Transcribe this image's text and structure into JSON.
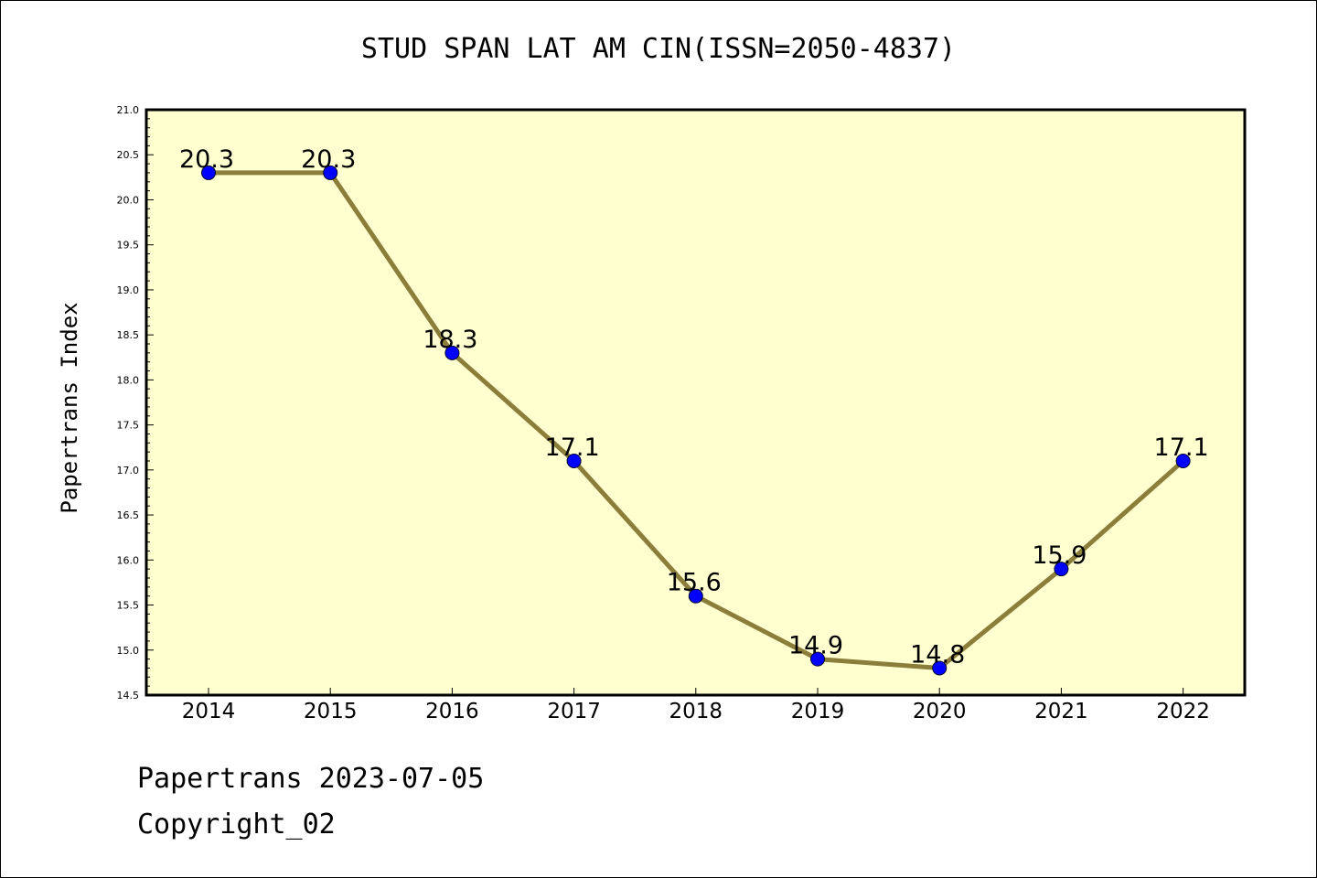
{
  "chart_data": {
    "type": "line",
    "title": "STUD SPAN LAT AM CIN(ISSN=2050-4837)",
    "xlabel": "",
    "ylabel": "Papertrans Index",
    "categories": [
      "2014",
      "2015",
      "2016",
      "2017",
      "2018",
      "2019",
      "2020",
      "2021",
      "2022"
    ],
    "series": [
      {
        "values": [
          20.3,
          20.3,
          18.3,
          17.1,
          15.6,
          14.9,
          14.8,
          15.9,
          17.1
        ]
      }
    ],
    "data_labels": [
      "20.3",
      "20.3",
      "18.3",
      "17.1",
      "15.6",
      "14.9",
      "14.8",
      "15.9",
      "17.1"
    ],
    "ylim": [
      14.5,
      21.0
    ],
    "yticks": [
      "14.5",
      "15.0",
      "15.5",
      "16.0",
      "16.5",
      "17.0",
      "17.5",
      "18.0",
      "18.5",
      "19.0",
      "19.5",
      "20.0",
      "20.5",
      "21.0"
    ],
    "grid": false,
    "legend": "none",
    "colors": {
      "plot_background": "#ffffd0",
      "line": "#8b7d3a",
      "marker": "#0000ff"
    }
  },
  "footer": {
    "date_line": "Papertrans 2023-07-05",
    "copyright": "Copyright_02"
  }
}
